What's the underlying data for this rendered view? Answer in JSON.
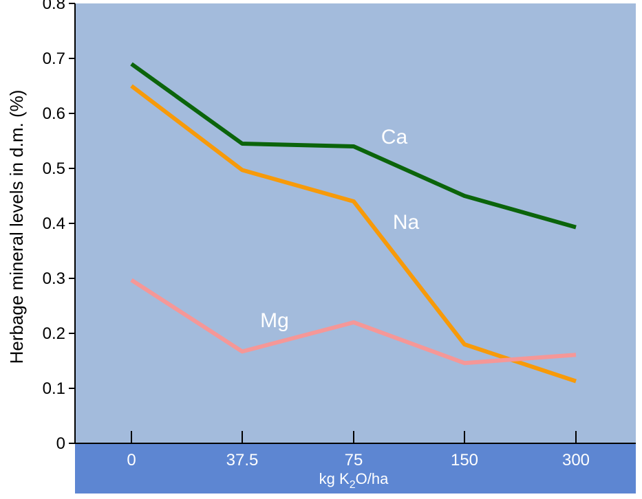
{
  "chart_data": {
    "type": "line",
    "categories": [
      "0",
      "37.5",
      "75",
      "150",
      "300"
    ],
    "ylabel": "Herbage mineral levels in d.m. (%)",
    "xlabel": {
      "pre": "kg K",
      "sub": "2",
      "post": "O/ha"
    },
    "ylim": [
      0,
      0.8
    ],
    "yticks": [
      "0",
      "0.1",
      "0.2",
      "0.3",
      "0.4",
      "0.5",
      "0.6",
      "0.7",
      "0.8"
    ],
    "grid": false,
    "legend": "inline labels",
    "series": [
      {
        "name": "Ca",
        "values": [
          0.69,
          0.545,
          0.54,
          0.45,
          0.393
        ],
        "color": "#0b640b"
      },
      {
        "name": "Na",
        "values": [
          0.65,
          0.497,
          0.44,
          0.18,
          0.113
        ],
        "color": "#f79a0a"
      },
      {
        "name": "Mg",
        "values": [
          0.297,
          0.167,
          0.22,
          0.146,
          0.161
        ],
        "color": "#f59797"
      }
    ]
  },
  "colors": {
    "plot_background": "#a3bbdc",
    "x_band": "#5d86d2",
    "axis": "#000000"
  }
}
